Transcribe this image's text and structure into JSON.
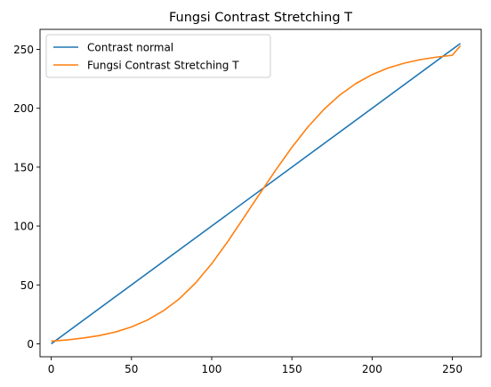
{
  "chart_data": {
    "type": "line",
    "title": "Fungsi Contrast Stretching T",
    "xlabel": "",
    "ylabel": "",
    "xlim": [
      -7,
      268
    ],
    "ylim": [
      -11,
      267
    ],
    "xticks": [
      0,
      50,
      100,
      150,
      200,
      250
    ],
    "yticks": [
      0,
      50,
      100,
      150,
      200,
      250
    ],
    "grid": false,
    "legend_position": "upper-left",
    "series": [
      {
        "name": "Contrast normal",
        "color": "#1f77b4",
        "x": [
          0,
          255
        ],
        "y": [
          0,
          255
        ]
      },
      {
        "name": "Fungsi Contrast Stretching T",
        "color": "#ff7f0e",
        "x": [
          0,
          10,
          20,
          30,
          40,
          50,
          60,
          70,
          80,
          90,
          100,
          110,
          120,
          127.5,
          130,
          140,
          150,
          160,
          170,
          180,
          190,
          200,
          210,
          220,
          230,
          240,
          250,
          255
        ],
        "y": [
          2.3,
          3.3,
          4.9,
          7.0,
          10.0,
          14.3,
          20.2,
          28.1,
          38.4,
          51.7,
          68.0,
          86.8,
          107.1,
          122.5,
          127.5,
          147.7,
          166.8,
          184.2,
          199.1,
          211.4,
          221.1,
          228.6,
          234.2,
          238.3,
          241.3,
          243.4,
          245.0,
          253.0
        ]
      }
    ]
  }
}
